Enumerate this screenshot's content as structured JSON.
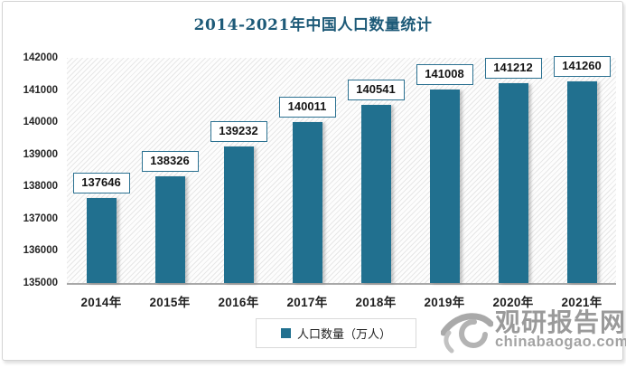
{
  "chart_data": {
    "type": "bar",
    "title": "2014-2021年中国人口数量统计",
    "categories": [
      "2014年",
      "2015年",
      "2016年",
      "2017年",
      "2018年",
      "2019年",
      "2020年",
      "2021年"
    ],
    "series": [
      {
        "name": "人口数量（万人）",
        "values": [
          137646,
          138326,
          139232,
          140011,
          140541,
          141008,
          141212,
          141260
        ]
      }
    ],
    "ylim": [
      135000,
      142000
    ],
    "yticks": [
      142000,
      141000,
      140000,
      139000,
      138000,
      137000,
      136000,
      135000
    ],
    "grid": false,
    "data_labels": true,
    "legend_position": "bottom",
    "plot_background": "diagonal-hatch"
  },
  "legend": {
    "label": "人口数量（万人）",
    "marker": "square"
  },
  "watermark": {
    "name": "观研报告网",
    "url": "chinabaogao.com",
    "logo": "eye-swirl-logo"
  },
  "colors": {
    "bar": "#21708f",
    "title_text": "#1d5a78",
    "label_box_border": "#2b7191",
    "axis_line": "#a8a8a8",
    "tick_text": "#262626",
    "hatch_line": "#e7e7e7",
    "legend_border": "#d9d9d9",
    "watermark_text": "#9a9a9a",
    "frame_border": "#d3d3d3"
  }
}
